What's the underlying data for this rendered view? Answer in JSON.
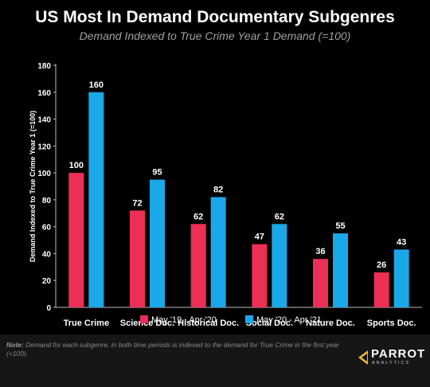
{
  "colors": {
    "background": "#000000",
    "series1": "#ee2f55",
    "series2": "#1ba8e8",
    "footer": "#161616"
  },
  "chart_data": {
    "type": "bar",
    "title": "US Most In Demand Documentary Subgenres",
    "subtitle": "Demand Indexed to True Crime Year 1 Demand (=100)",
    "xlabel": "",
    "ylabel": "Demand Indexed to True Crime Year 1 (=100)",
    "ylim": [
      0,
      180
    ],
    "yticks": [
      0,
      20,
      40,
      60,
      80,
      100,
      120,
      140,
      160,
      180
    ],
    "grid": false,
    "legend_position": "bottom-center",
    "categories": [
      "True Crime",
      "Science Doc.",
      "Historical Doc.",
      "Social Doc.",
      "Nature Doc.",
      "Sports Doc."
    ],
    "series": [
      {
        "name": "May '19 - Apr '20",
        "color": "#ee2f55",
        "values": [
          100,
          72,
          62,
          47,
          36,
          26
        ]
      },
      {
        "name": "May '20 - Apr '21",
        "color": "#1ba8e8",
        "values": [
          160,
          95,
          82,
          62,
          55,
          43
        ]
      }
    ]
  },
  "footer": {
    "note_label": "Note:",
    "note_text": "Demand for each  subgenre, in both time periods is indexed to the demand for True Crime in the first year (=100).",
    "logo_name": "PARROT",
    "logo_sub": "ANALYTICS"
  }
}
